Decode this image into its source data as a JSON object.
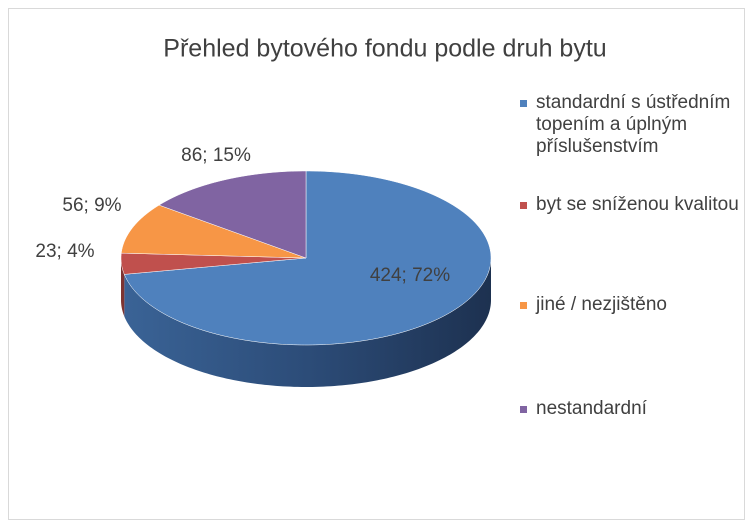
{
  "chart_data": {
    "type": "pie",
    "title": "Přehled bytového fondu podle druh bytu",
    "categories": [
      "standardní s ústředním topením a úplným příslušenstvím",
      "byt se sníženou kvalitou",
      "jiné / nezjištěno",
      "nestandardní"
    ],
    "values": [
      424,
      23,
      56,
      86
    ],
    "value_labels": [
      "424; 72%",
      "23; 4%",
      "56; 9%",
      "86; 15%"
    ],
    "colors": [
      "#4f81bd",
      "#c0504d",
      "#f79646",
      "#8064a2"
    ],
    "legend": "right"
  }
}
